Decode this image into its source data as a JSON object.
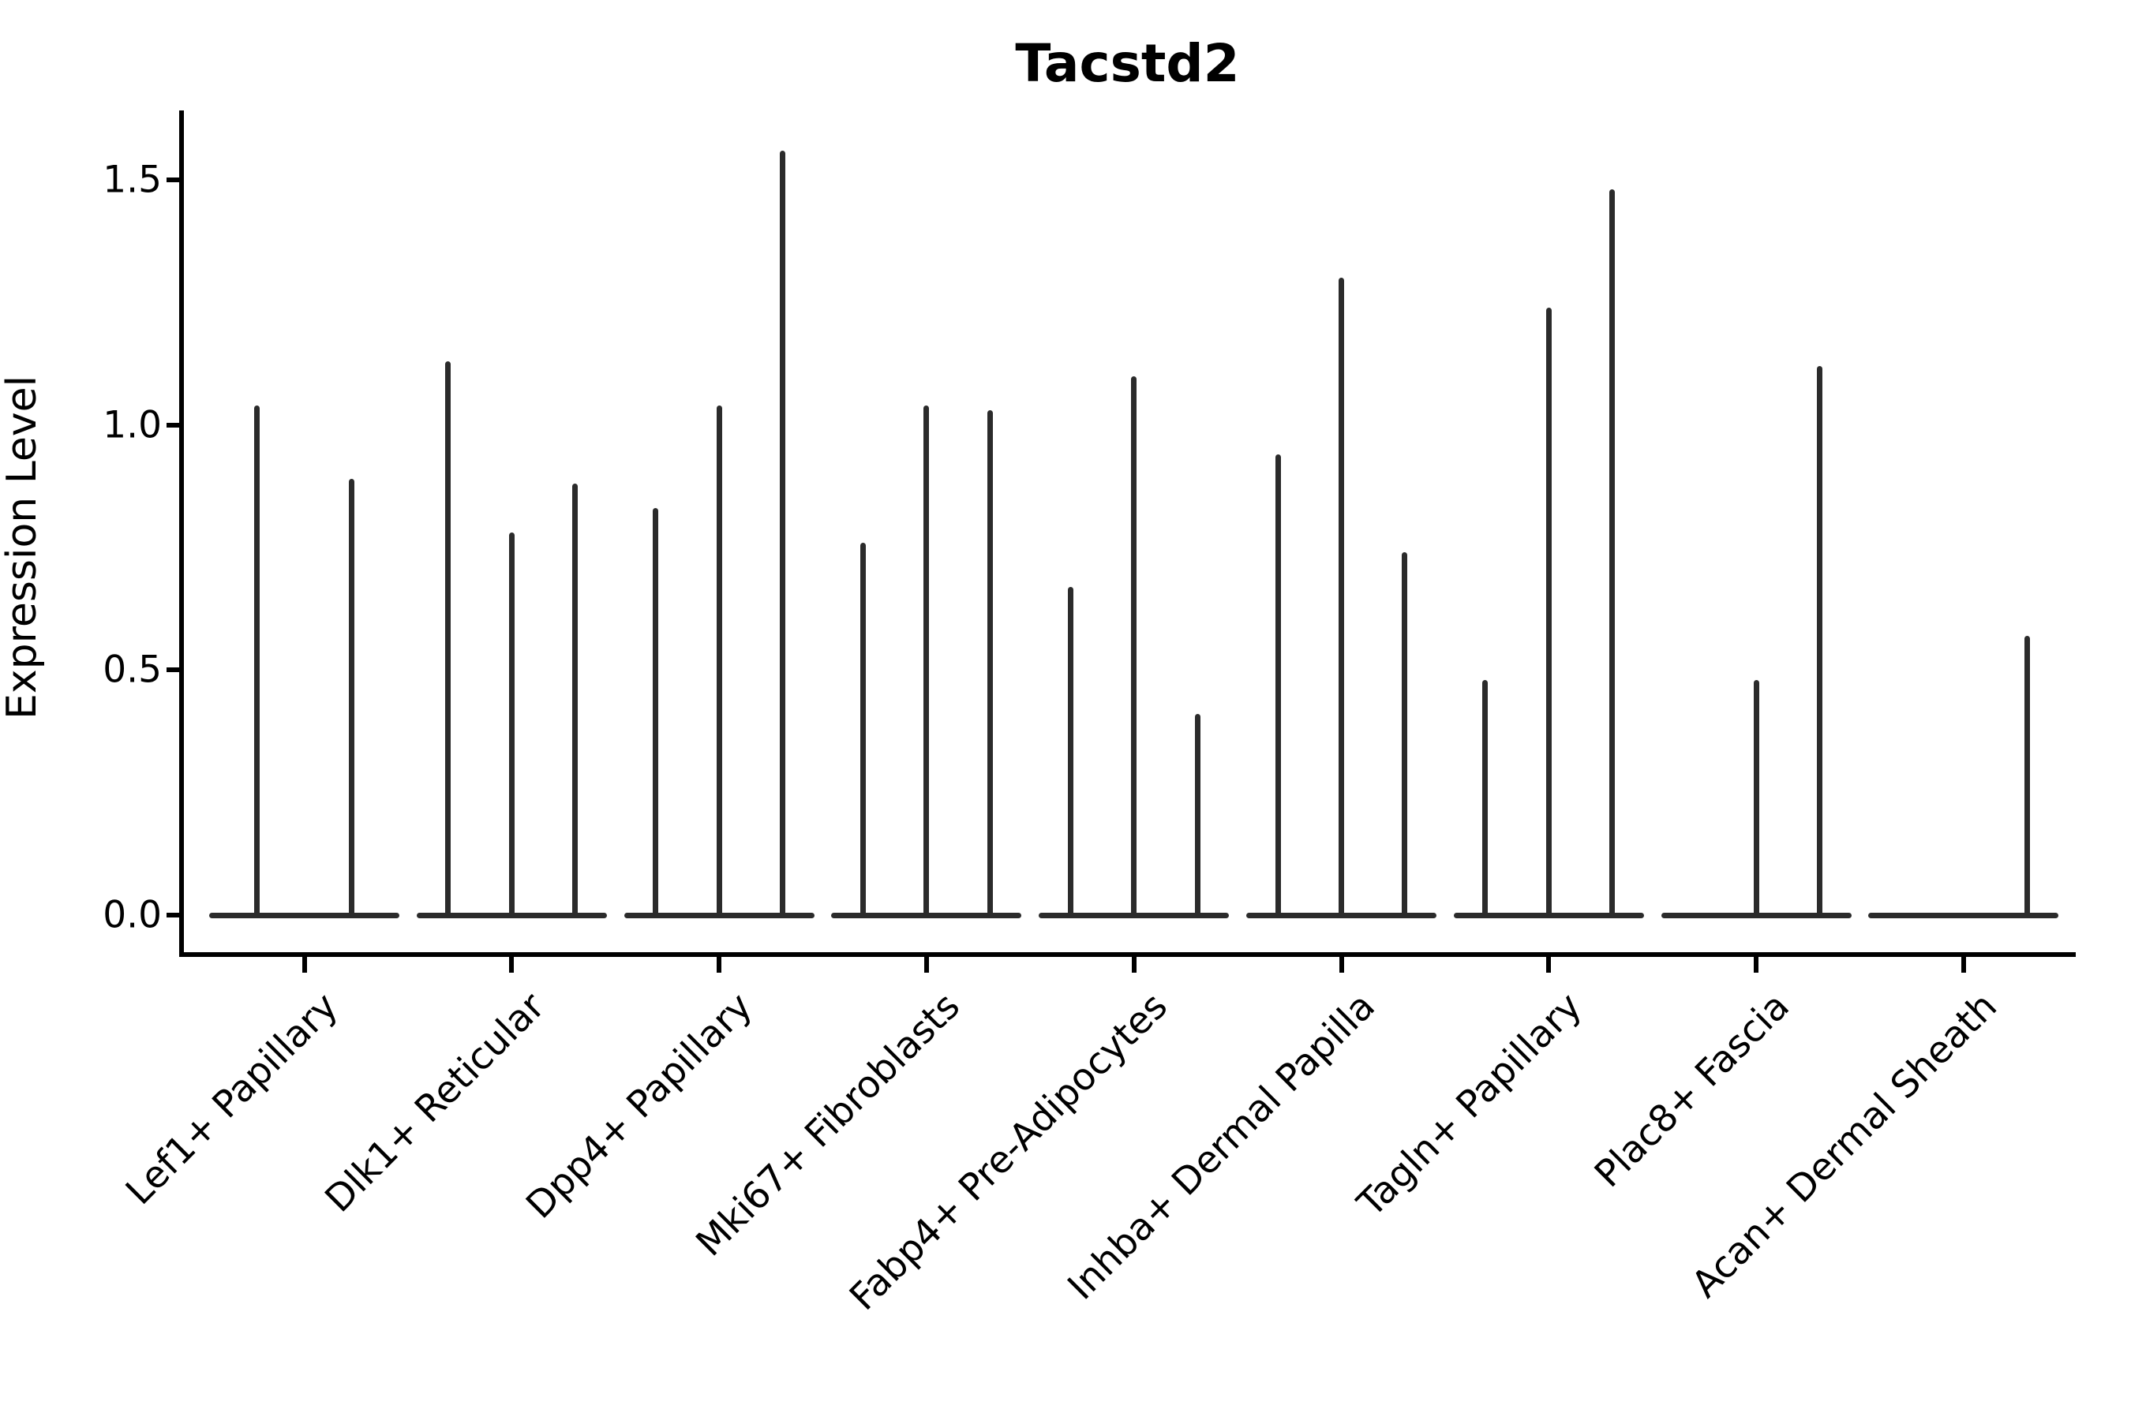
{
  "title": "Tacstd2",
  "y_axis": {
    "label": "Expression Level",
    "ticks": [
      {
        "label": "1.5",
        "value": 1.5
      },
      {
        "label": "1.0",
        "value": 1.0
      },
      {
        "label": "0.5",
        "value": 0.5
      },
      {
        "label": "0.0",
        "value": 0.0
      }
    ]
  },
  "chart_data": {
    "type": "violin",
    "title": "Tacstd2",
    "xlabel": "",
    "ylabel": "Expression Level",
    "ylim": [
      0,
      1.64
    ],
    "grid": false,
    "legend": "none",
    "description": "Violin plot of Tacstd2 expression per fibroblast cluster; each category holds dodged sub-violins that collapse to a flat base at 0 with a thin spike up to the maximum expression value.",
    "categories": [
      {
        "name": "Lef1+ Papillary",
        "n_slots": 2,
        "violins": [
          {
            "slot": 0,
            "max": 1.04
          },
          {
            "slot": 1,
            "max": 0.89
          }
        ]
      },
      {
        "name": "Dlk1+ Reticular",
        "n_slots": 3,
        "violins": [
          {
            "slot": 0,
            "max": 1.13
          },
          {
            "slot": 1,
            "max": 0.78
          },
          {
            "slot": 2,
            "max": 0.88
          }
        ]
      },
      {
        "name": "Dpp4+ Papillary",
        "n_slots": 3,
        "violins": [
          {
            "slot": 0,
            "max": 0.83
          },
          {
            "slot": 1,
            "max": 1.04
          },
          {
            "slot": 2,
            "max": 1.56
          }
        ]
      },
      {
        "name": "Mki67+ Fibroblasts",
        "n_slots": 3,
        "violins": [
          {
            "slot": 0,
            "max": 0.76
          },
          {
            "slot": 1,
            "max": 1.04
          },
          {
            "slot": 2,
            "max": 1.03
          }
        ]
      },
      {
        "name": "Fabp4+ Pre-Adipocytes",
        "n_slots": 3,
        "violins": [
          {
            "slot": 0,
            "max": 0.67
          },
          {
            "slot": 1,
            "max": 1.1
          },
          {
            "slot": 2,
            "max": 0.41
          }
        ]
      },
      {
        "name": "Inhba+ Dermal Papilla",
        "n_slots": 3,
        "violins": [
          {
            "slot": 0,
            "max": 0.94
          },
          {
            "slot": 1,
            "max": 1.3
          },
          {
            "slot": 2,
            "max": 0.74
          }
        ]
      },
      {
        "name": "Tagln+ Papillary",
        "n_slots": 3,
        "violins": [
          {
            "slot": 0,
            "max": 0.48
          },
          {
            "slot": 1,
            "max": 1.24
          },
          {
            "slot": 2,
            "max": 1.48
          }
        ]
      },
      {
        "name": "Plac8+ Fascia",
        "n_slots": 3,
        "violins": [
          {
            "slot": 1,
            "max": 0.48
          },
          {
            "slot": 2,
            "max": 1.12
          }
        ]
      },
      {
        "name": "Acan+ Dermal Sheath",
        "n_slots": 3,
        "violins": [
          {
            "slot": 2,
            "max": 0.57
          }
        ]
      }
    ],
    "colors": {
      "line": "#2b2b2b",
      "spine": "#000000",
      "text": "#000000",
      "background": "#ffffff"
    }
  }
}
